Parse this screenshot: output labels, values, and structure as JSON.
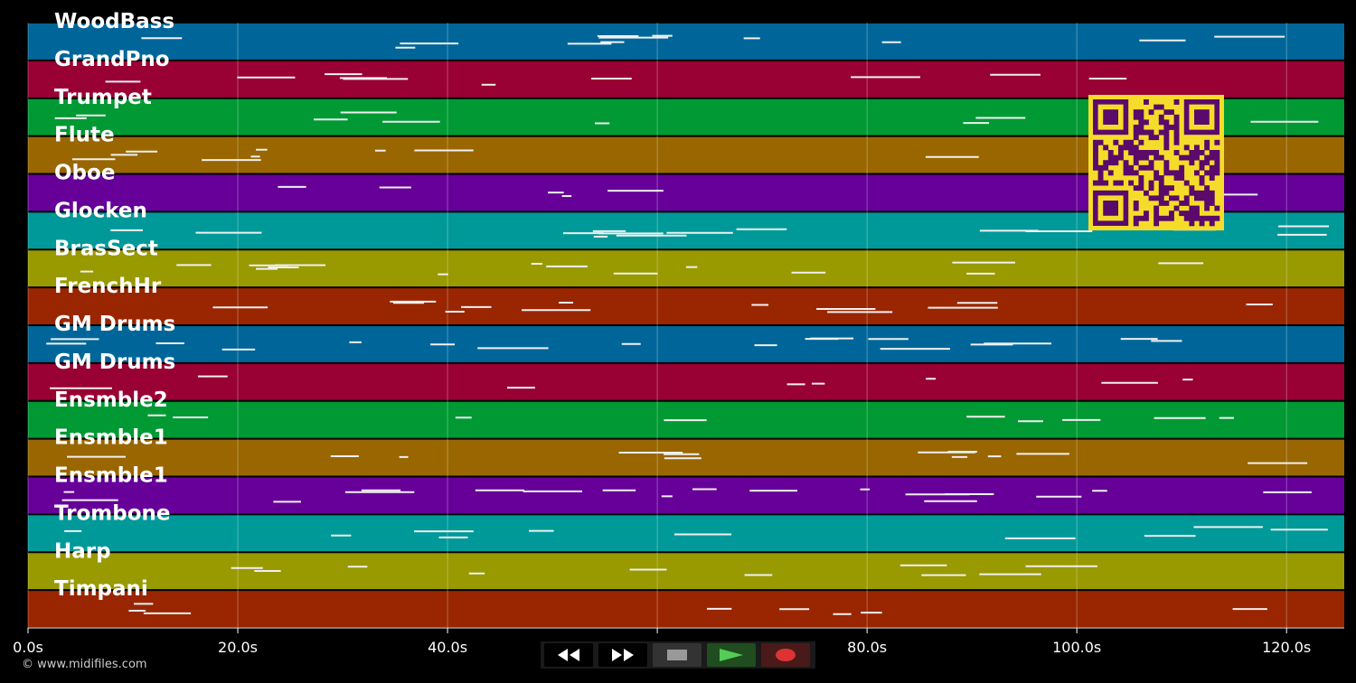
{
  "tracks": [
    {
      "name": "WoodBass",
      "color": "#006699"
    },
    {
      "name": "GrandPno",
      "color": "#990033"
    },
    {
      "name": "Trumpet",
      "color": "#009933"
    },
    {
      "name": "Flute",
      "color": "#996600"
    },
    {
      "name": "Oboe",
      "color": "#660099"
    },
    {
      "name": "Glocken",
      "color": "#009999"
    },
    {
      "name": "BrasSect",
      "color": "#999900"
    },
    {
      "name": "FrenchHr",
      "color": "#992600"
    },
    {
      "name": "GM Drums",
      "color": "#006699"
    },
    {
      "name": "GM Drums",
      "color": "#990033"
    },
    {
      "name": "Ensmble2",
      "color": "#009933"
    },
    {
      "name": "Ensmble1",
      "color": "#996600"
    },
    {
      "name": "Ensmble1",
      "color": "#660099"
    },
    {
      "name": "Trombone",
      "color": "#009999"
    },
    {
      "name": "Harp",
      "color": "#999900"
    },
    {
      "name": "Timpani",
      "color": "#992600"
    }
  ],
  "timeline": {
    "xlim": [
      0,
      125.5
    ],
    "xticks": [
      {
        "value": 0,
        "label": "0.0s"
      },
      {
        "value": 20,
        "label": "20.0s"
      },
      {
        "value": 40,
        "label": "40.0s"
      },
      {
        "value": 60,
        "label": "60.0s"
      },
      {
        "value": 80,
        "label": "80.0s"
      },
      {
        "value": 100,
        "label": "100.0s"
      },
      {
        "value": 120,
        "label": "120.0s"
      }
    ]
  },
  "footer": "© www.midifiles.com"
}
